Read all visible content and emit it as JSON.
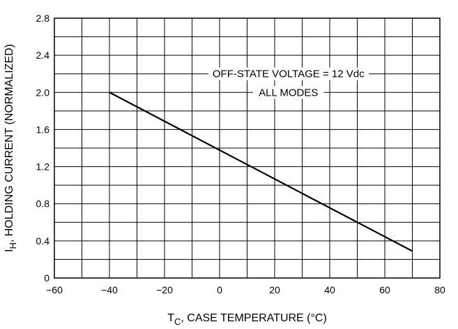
{
  "chart_data": {
    "type": "line",
    "xlabel": {
      "main": "T",
      "sub": "C",
      "rest": ", CASE TEMPERATURE (°C)"
    },
    "ylabel": {
      "main": "I",
      "sub": "H",
      "rest": ", HOLDING CURRENT (NORMALIZED)"
    },
    "xlim": [
      -60,
      80
    ],
    "ylim": [
      0,
      2.8
    ],
    "x_ticks": [
      -60,
      -40,
      -20,
      0,
      20,
      40,
      60,
      80
    ],
    "x_tick_labels": [
      "−60",
      "−40",
      "−20",
      "0",
      "20",
      "40",
      "60",
      "80"
    ],
    "y_ticks": [
      0,
      0.4,
      0.8,
      1.2,
      1.6,
      2.0,
      2.4,
      2.8
    ],
    "y_tick_labels": [
      "0",
      "0.4",
      "0.8",
      "1.2",
      "1.6",
      "2.0",
      "2.4",
      "2.8"
    ],
    "x_minor_step": 10,
    "y_minor_step": 0.2,
    "grid": true,
    "annotations": [
      "OFF-STATE VOLTAGE = 12 Vdc",
      "ALL MODES"
    ],
    "series": [
      {
        "x": [
          -40,
          70
        ],
        "y": [
          2.0,
          0.29
        ]
      }
    ]
  }
}
